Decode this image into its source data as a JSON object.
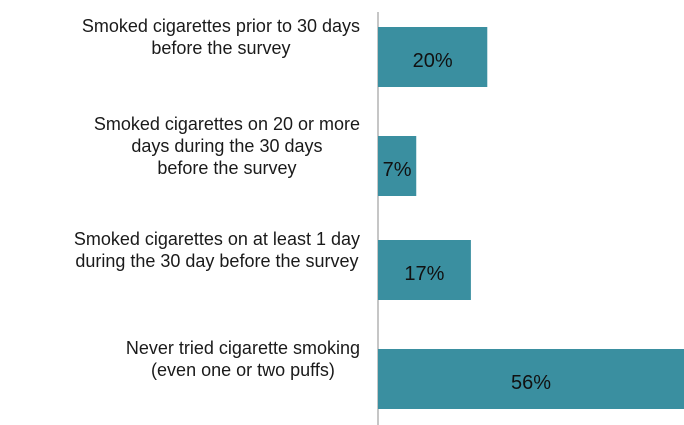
{
  "colors": {
    "bar": "#3a8fa0",
    "axis": "#8c8c8c",
    "text": "#1a1a1a"
  },
  "chart_data": {
    "type": "bar",
    "orientation": "horizontal",
    "categories": [
      [
        "Smoked cigarettes prior to 30 days",
        "before the survey"
      ],
      [
        "Smoked cigarettes on 20 or more",
        "days during the 30 days",
        "before the survey"
      ],
      [
        "Smoked cigarettes on at least 1 day",
        "during the 30 day before the survey"
      ],
      [
        "Never tried cigarette smoking",
        "(even one or two puffs)"
      ]
    ],
    "values": [
      20,
      7,
      17,
      56
    ],
    "data_labels": [
      "20%",
      "7%",
      "17%",
      "56%"
    ],
    "xlim": [
      0,
      56
    ],
    "grid": false,
    "legend": "none"
  }
}
